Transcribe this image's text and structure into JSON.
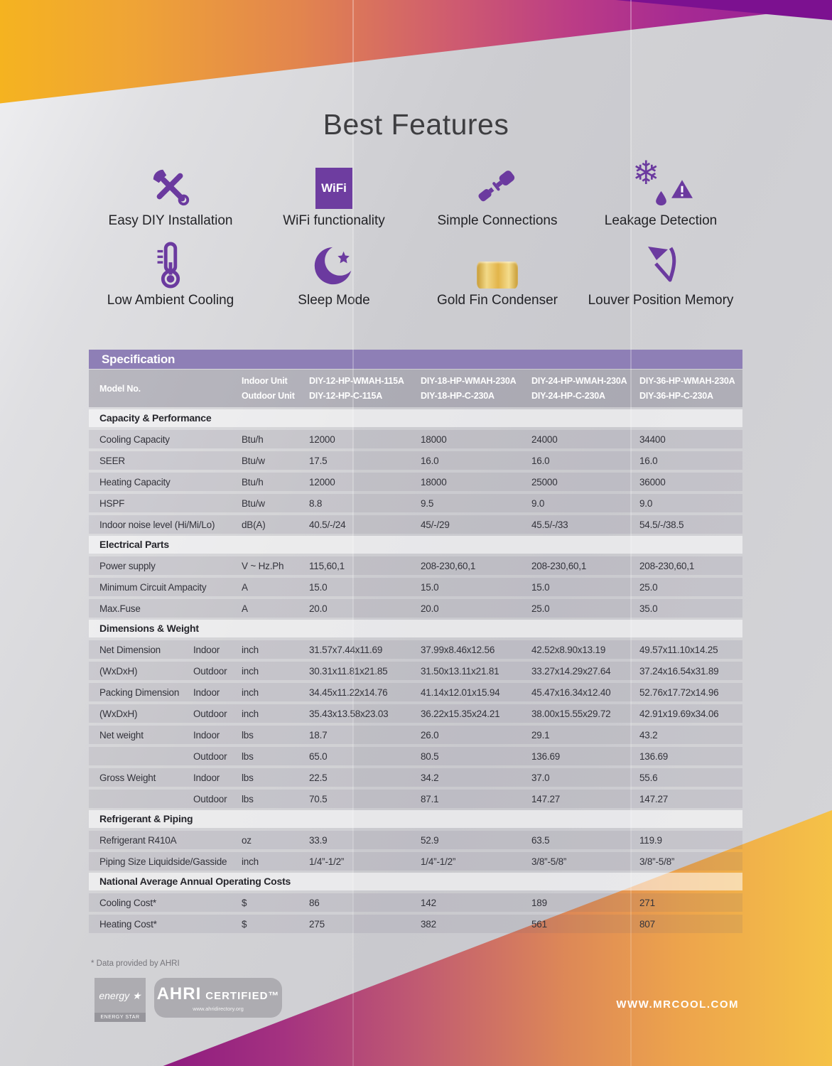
{
  "title": "Best Features",
  "features": [
    {
      "id": "easy-diy",
      "label": "Easy DIY Installation"
    },
    {
      "id": "wifi",
      "label": "WiFi functionality",
      "badge": "WiFi"
    },
    {
      "id": "connections",
      "label": "Simple Connections"
    },
    {
      "id": "leakage",
      "label": "Leakage Detection"
    },
    {
      "id": "low-ambient",
      "label": "Low Ambient Cooling"
    },
    {
      "id": "sleep",
      "label": "Sleep Mode"
    },
    {
      "id": "goldfin",
      "label": "Gold Fin Condenser"
    },
    {
      "id": "louver",
      "label": "Louver Position Memory"
    }
  ],
  "spec": {
    "header": "Specification",
    "model_row": {
      "label": "Model No.",
      "indoor_label": "Indoor Unit",
      "outdoor_label": "Outdoor Unit",
      "columns": [
        {
          "indoor": "DIY-12-HP-WMAH-115A",
          "outdoor": "DIY-12-HP-C-115A"
        },
        {
          "indoor": "DIY-18-HP-WMAH-230A",
          "outdoor": "DIY-18-HP-C-230A"
        },
        {
          "indoor": "DIY-24-HP-WMAH-230A",
          "outdoor": "DIY-24-HP-C-230A"
        },
        {
          "indoor": "DIY-36-HP-WMAH-230A",
          "outdoor": "DIY-36-HP-C-230A"
        }
      ]
    },
    "sections": [
      {
        "title": "Capacity & Performance",
        "rows": [
          {
            "label": "Cooling Capacity",
            "unit": "Btu/h",
            "values": [
              "12000",
              "18000",
              "24000",
              "34400"
            ]
          },
          {
            "label": "SEER",
            "unit": "Btu/w",
            "values": [
              "17.5",
              "16.0",
              "16.0",
              "16.0"
            ]
          },
          {
            "label": "Heating Capacity",
            "unit": "Btu/h",
            "values": [
              "12000",
              "18000",
              "25000",
              "36000"
            ]
          },
          {
            "label": "HSPF",
            "unit": "Btu/w",
            "values": [
              "8.8",
              "9.5",
              "9.0",
              "9.0"
            ]
          },
          {
            "label": "Indoor noise level (Hi/Mi/Lo)",
            "unit": "dB(A)",
            "values": [
              "40.5/-/24",
              "45/-/29",
              "45.5/-/33",
              "54.5/-/38.5"
            ]
          }
        ]
      },
      {
        "title": "Electrical Parts",
        "rows": [
          {
            "label": "Power supply",
            "unit": "V ~ Hz.Ph",
            "values": [
              "115,60,1",
              "208-230,60,1",
              "208-230,60,1",
              "208-230,60,1"
            ]
          },
          {
            "label": "Minimum Circuit Ampacity",
            "unit": "A",
            "values": [
              "15.0",
              "15.0",
              "15.0",
              "25.0"
            ]
          },
          {
            "label": "Max.Fuse",
            "unit": "A",
            "values": [
              "20.0",
              "20.0",
              "25.0",
              "35.0"
            ]
          }
        ]
      },
      {
        "title": "Dimensions & Weight",
        "rows": [
          {
            "label": "Net Dimension",
            "sub": "Indoor",
            "unit": "inch",
            "values": [
              "31.57x7.44x11.69",
              "37.99x8.46x12.56",
              "42.52x8.90x13.19",
              "49.57x11.10x14.25"
            ]
          },
          {
            "label": "(WxDxH)",
            "sub": "Outdoor",
            "unit": "inch",
            "values": [
              "30.31x11.81x21.85",
              "31.50x13.11x21.81",
              "33.27x14.29x27.64",
              "37.24x16.54x31.89"
            ]
          },
          {
            "label": "Packing Dimension",
            "sub": "Indoor",
            "unit": "inch",
            "values": [
              "34.45x11.22x14.76",
              "41.14x12.01x15.94",
              "45.47x16.34x12.40",
              "52.76x17.72x14.96"
            ]
          },
          {
            "label": "(WxDxH)",
            "sub": "Outdoor",
            "unit": "inch",
            "values": [
              "35.43x13.58x23.03",
              "36.22x15.35x24.21",
              "38.00x15.55x29.72",
              "42.91x19.69x34.06"
            ]
          },
          {
            "label": "Net weight",
            "sub": "Indoor",
            "unit": "lbs",
            "values": [
              "18.7",
              "26.0",
              "29.1",
              "43.2"
            ]
          },
          {
            "label": "",
            "sub": "Outdoor",
            "unit": "lbs",
            "values": [
              "65.0",
              "80.5",
              "136.69",
              "136.69"
            ]
          },
          {
            "label": "Gross Weight",
            "sub": "Indoor",
            "unit": "lbs",
            "values": [
              "22.5",
              "34.2",
              "37.0",
              "55.6"
            ]
          },
          {
            "label": "",
            "sub": "Outdoor",
            "unit": "lbs",
            "values": [
              "70.5",
              "87.1",
              "147.27",
              "147.27"
            ]
          }
        ]
      },
      {
        "title": "Refrigerant & Piping",
        "rows": [
          {
            "label": "Refrigerant R410A",
            "unit": "oz",
            "values": [
              "33.9",
              "52.9",
              "63.5",
              "119.9"
            ]
          },
          {
            "label": "Piping Size Liquidside/Gasside",
            "unit": "inch",
            "values": [
              "1/4”-1/2”",
              "1/4”-1/2”",
              "3/8”-5/8”",
              "3/8”-5/8”"
            ]
          }
        ]
      },
      {
        "title": "National Average Annual Operating Costs",
        "rows": [
          {
            "label": "Cooling Cost*",
            "unit": "$",
            "values": [
              "86",
              "142",
              "189",
              "271"
            ]
          },
          {
            "label": "Heating Cost*",
            "unit": "$",
            "values": [
              "275",
              "382",
              "561",
              "807"
            ]
          }
        ]
      }
    ]
  },
  "footnote": "* Data provided by AHRI",
  "logos": {
    "energy_star_script": "energy",
    "energy_star_bar": "ENERGY STAR",
    "ahri_name": "AHRI",
    "ahri_certified": "CERTIFIED™",
    "ahri_sub": "www.ahridirectory.org"
  },
  "website": "WWW.MRCOOL.COM",
  "colors": {
    "accent_purple": "#6B3A9F",
    "header_bar_purple": "#8E7FB6",
    "gold": "#E7BC52",
    "band_yellow": "#F5B320",
    "band_magenta": "#A62A93",
    "band_dark_purple": "#7C1190",
    "band_orange": "#EDA44C"
  }
}
